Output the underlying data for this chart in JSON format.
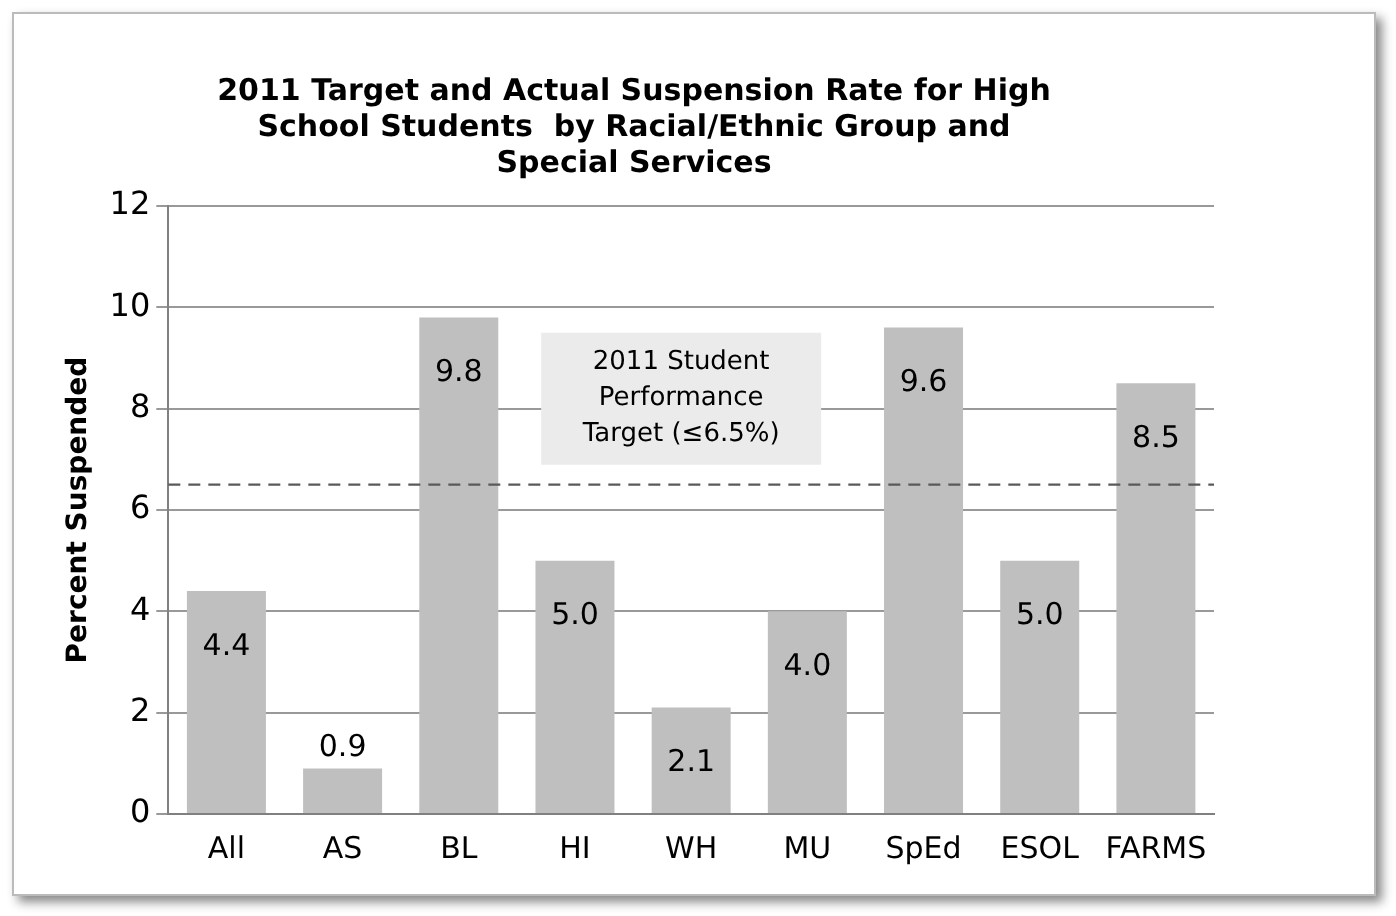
{
  "chart_data": {
    "type": "bar",
    "title": "2011 Target and Actual Suspension Rate for High School Students  by Racial/Ethnic Group and Special Services",
    "ylabel": "Percent Suspended",
    "categories": [
      "All",
      "AS",
      "BL",
      "HI",
      "WH",
      "MU",
      "SpEd",
      "ESOL",
      "FARMS"
    ],
    "values": [
      4.4,
      0.9,
      9.8,
      5.0,
      2.1,
      4.0,
      9.6,
      5.0,
      8.5
    ],
    "value_labels": [
      "4.4",
      "0.9",
      "9.8",
      "5.0",
      "2.1",
      "4.0",
      "9.6",
      "5.0",
      "8.5"
    ],
    "color": "#bfbfbf",
    "ylim": [
      0,
      12
    ],
    "yticks": [
      0,
      2,
      4,
      6,
      8,
      10,
      12
    ],
    "grid": "y",
    "legend": false,
    "ref_lines": [
      {
        "axis": "y",
        "value": 6.5,
        "label": "2011 Student Performance Target (≤6.5%)",
        "color": "#595959",
        "line_style": "dashed"
      }
    ]
  }
}
